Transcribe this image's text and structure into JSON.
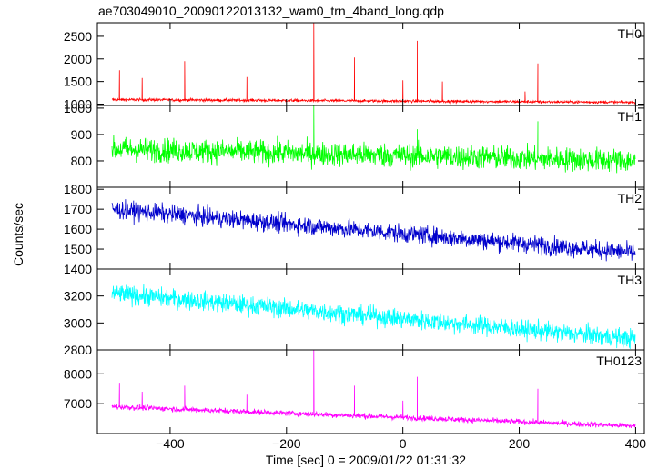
{
  "chart_data": {
    "type": "line",
    "title": "ae703049010_20090122013132_wam0_trn_4band_long.qdp",
    "xlabel": "Time [sec] 0 = 2009/01/22 01:31:32",
    "ylabel": "Counts/sec",
    "xlim": [
      -525,
      415
    ],
    "x_ticks": [
      -400,
      -200,
      0,
      200,
      400
    ],
    "x_range": [
      -500,
      400
    ],
    "panels": [
      {
        "name": "TH0",
        "color": "#ff0000",
        "ylim": [
          970,
          2800
        ],
        "y_ticks": [
          1000,
          1500,
          2000,
          2500
        ],
        "trend": [
          [
            -500,
            1100
          ],
          [
            400,
            1040
          ]
        ],
        "noise": 30,
        "spikes": [
          [
            -487,
            1750
          ],
          [
            -448,
            1580
          ],
          [
            -375,
            1950
          ],
          [
            -268,
            1600
          ],
          [
            -153,
            2800
          ],
          [
            -83,
            2030
          ],
          [
            0,
            1530
          ],
          [
            25,
            2400
          ],
          [
            68,
            1500
          ],
          [
            210,
            1280
          ],
          [
            232,
            1900
          ]
        ]
      },
      {
        "name": "TH1",
        "color": "#00ff00",
        "ylim": [
          700,
          1010
        ],
        "y_ticks": [
          800,
          900,
          1000
        ],
        "trend": [
          [
            -500,
            845
          ],
          [
            400,
            800
          ]
        ],
        "noise": 45,
        "spikes": [
          [
            -153,
            1010
          ],
          [
            25,
            920
          ],
          [
            232,
            950
          ]
        ]
      },
      {
        "name": "TH2",
        "color": "#0000cc",
        "ylim": [
          1400,
          1810
        ],
        "y_ticks": [
          1400,
          1500,
          1600,
          1700,
          1800
        ],
        "trend": [
          [
            -500,
            1700
          ],
          [
            400,
            1480
          ]
        ],
        "noise": 45,
        "spikes": []
      },
      {
        "name": "TH3",
        "color": "#00ffff",
        "ylim": [
          2800,
          3400
        ],
        "y_ticks": [
          2800,
          3000,
          3200
        ],
        "trend": [
          [
            -500,
            3220
          ],
          [
            400,
            2880
          ]
        ],
        "noise": 70,
        "spikes": []
      },
      {
        "name": "TH0123",
        "color": "#ff00ff",
        "ylim": [
          6000,
          8800
        ],
        "y_ticks": [
          7000,
          8000
        ],
        "trend": [
          [
            -500,
            6900
          ],
          [
            400,
            6250
          ]
        ],
        "noise": 90,
        "spikes": [
          [
            -487,
            7700
          ],
          [
            -448,
            7400
          ],
          [
            -375,
            7600
          ],
          [
            -268,
            7300
          ],
          [
            -153,
            8800
          ],
          [
            -83,
            7600
          ],
          [
            0,
            7100
          ],
          [
            25,
            7900
          ],
          [
            232,
            7500
          ]
        ]
      }
    ]
  }
}
